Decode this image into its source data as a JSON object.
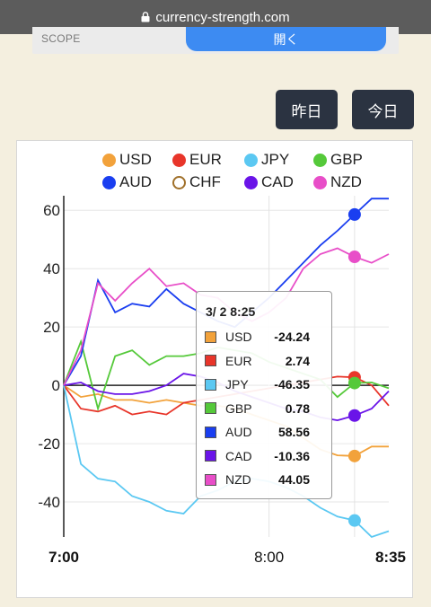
{
  "browser": {
    "url": "currency-strength.com"
  },
  "scope_bar": {
    "label": "SCOPE",
    "open_button": "開く"
  },
  "day_buttons": {
    "yesterday": "昨日",
    "today": "今日"
  },
  "legend": [
    {
      "label": "USD",
      "color": "#f2a23b",
      "hollow": false
    },
    {
      "label": "EUR",
      "color": "#e8352a",
      "hollow": false
    },
    {
      "label": "JPY",
      "color": "#5bc8f2",
      "hollow": false
    },
    {
      "label": "GBP",
      "color": "#55c93a",
      "hollow": false
    },
    {
      "label": "AUD",
      "color": "#1a3ef0",
      "hollow": false
    },
    {
      "label": "CHF",
      "color": "#a0702a",
      "hollow": true
    },
    {
      "label": "CAD",
      "color": "#6a14e8",
      "hollow": false
    },
    {
      "label": "NZD",
      "color": "#e84ec8",
      "hollow": false
    }
  ],
  "tooltip": {
    "title": "3/ 2 8:25",
    "rows": [
      {
        "name": "USD",
        "value": "-24.24",
        "color": "#f2a23b"
      },
      {
        "name": "EUR",
        "value": "2.74",
        "color": "#e8352a"
      },
      {
        "name": "JPY",
        "value": "-46.35",
        "color": "#5bc8f2"
      },
      {
        "name": "GBP",
        "value": "0.78",
        "color": "#55c93a"
      },
      {
        "name": "AUD",
        "value": "58.56",
        "color": "#1a3ef0"
      },
      {
        "name": "CAD",
        "value": "-10.36",
        "color": "#6a14e8"
      },
      {
        "name": "NZD",
        "value": "44.05",
        "color": "#e84ec8"
      }
    ]
  },
  "chart_data": {
    "type": "line",
    "x_tick_labels": [
      "7:00",
      "8:00",
      "8:35"
    ],
    "y_ticks": [
      60,
      40,
      20,
      0,
      -20,
      -40
    ],
    "ylim": [
      -52,
      65
    ],
    "x_minutes": [
      0,
      60,
      95
    ],
    "highlight_time_minutes": 85,
    "x": [
      0,
      5,
      10,
      15,
      20,
      25,
      30,
      35,
      40,
      45,
      50,
      55,
      60,
      65,
      70,
      75,
      80,
      85,
      90,
      95
    ],
    "series": [
      {
        "name": "USD",
        "color": "#f2a23b",
        "values": [
          0,
          -4,
          -3,
          -5,
          -5,
          -6,
          -5,
          -6,
          -7,
          -7,
          -8,
          -10,
          -12,
          -14,
          -18,
          -22,
          -24,
          -24.24,
          -21,
          -21
        ]
      },
      {
        "name": "EUR",
        "color": "#e8352a",
        "values": [
          0,
          -8,
          -9,
          -7,
          -10,
          -9,
          -10,
          -6,
          -5,
          -4,
          -3,
          -2,
          -1,
          0,
          1,
          2,
          3,
          2.74,
          0,
          -7
        ]
      },
      {
        "name": "JPY",
        "color": "#5bc8f2",
        "values": [
          0,
          -27,
          -32,
          -33,
          -38,
          -40,
          -43,
          -44,
          -38,
          -36,
          -33,
          -32,
          -33,
          -35,
          -38,
          -42,
          -45,
          -46.35,
          -52,
          -50
        ]
      },
      {
        "name": "GBP",
        "color": "#55c93a",
        "values": [
          0,
          15,
          -8,
          10,
          12,
          7,
          10,
          10,
          11,
          13,
          12,
          11,
          8,
          6,
          4,
          2,
          -4,
          0.78,
          1,
          -1
        ]
      },
      {
        "name": "AUD",
        "color": "#1a3ef0",
        "values": [
          0,
          10,
          36,
          25,
          28,
          27,
          33,
          28,
          25,
          22,
          20,
          25,
          30,
          36,
          42,
          48,
          53,
          58.56,
          64,
          64
        ]
      },
      {
        "name": "CAD",
        "color": "#6a14e8",
        "values": [
          0,
          1,
          -2,
          -3,
          -3,
          -2,
          0,
          4,
          3,
          1,
          -2,
          -4,
          -6,
          -8,
          -9,
          -11,
          -12,
          -10.36,
          -8,
          -2
        ]
      },
      {
        "name": "NZD",
        "color": "#e84ec8",
        "values": [
          0,
          12,
          35,
          29,
          35,
          40,
          34,
          35,
          31,
          30,
          25,
          22,
          25,
          30,
          40,
          45,
          47,
          44.05,
          42,
          45
        ]
      }
    ]
  }
}
